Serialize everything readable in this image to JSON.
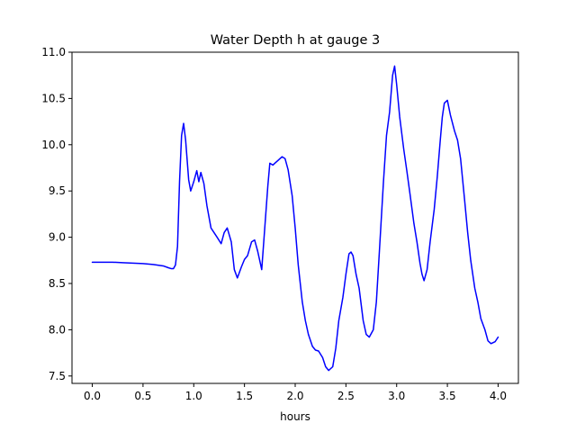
{
  "chart_data": {
    "type": "line",
    "title": "Water Depth h at gauge 3",
    "xlabel": "hours",
    "ylabel": "",
    "xlim": [
      -0.2,
      4.2
    ],
    "ylim": [
      7.42,
      11.0
    ],
    "xticks": [
      0.0,
      0.5,
      1.0,
      1.5,
      2.0,
      2.5,
      3.0,
      3.5,
      4.0
    ],
    "xtick_labels": [
      "0.0",
      "0.5",
      "1.0",
      "1.5",
      "2.0",
      "2.5",
      "3.0",
      "3.5",
      "4.0"
    ],
    "yticks": [
      7.5,
      8.0,
      8.5,
      9.0,
      9.5,
      10.0,
      10.5,
      11.0
    ],
    "ytick_labels": [
      "7.5",
      "8.0",
      "8.5",
      "9.0",
      "9.5",
      "10.0",
      "10.5",
      "11.0"
    ],
    "grid": false,
    "series": [
      {
        "color": "#0000ff",
        "x": [
          0.0,
          0.1,
          0.2,
          0.3,
          0.4,
          0.5,
          0.6,
          0.7,
          0.75,
          0.78,
          0.8,
          0.82,
          0.84,
          0.86,
          0.88,
          0.9,
          0.92,
          0.95,
          0.97,
          1.0,
          1.03,
          1.05,
          1.07,
          1.1,
          1.13,
          1.17,
          1.2,
          1.23,
          1.27,
          1.3,
          1.33,
          1.37,
          1.4,
          1.43,
          1.47,
          1.5,
          1.53,
          1.57,
          1.6,
          1.63,
          1.67,
          1.7,
          1.73,
          1.75,
          1.78,
          1.8,
          1.83,
          1.87,
          1.9,
          1.93,
          1.97,
          2.0,
          2.03,
          2.07,
          2.1,
          2.13,
          2.17,
          2.2,
          2.23,
          2.27,
          2.3,
          2.33,
          2.37,
          2.4,
          2.43,
          2.47,
          2.5,
          2.53,
          2.55,
          2.57,
          2.6,
          2.63,
          2.67,
          2.7,
          2.73,
          2.77,
          2.8,
          2.83,
          2.87,
          2.9,
          2.93,
          2.96,
          2.98,
          3.0,
          3.03,
          3.07,
          3.1,
          3.13,
          3.17,
          3.2,
          3.23,
          3.25,
          3.27,
          3.3,
          3.33,
          3.37,
          3.4,
          3.43,
          3.45,
          3.47,
          3.5,
          3.53,
          3.57,
          3.6,
          3.63,
          3.67,
          3.7,
          3.73,
          3.77,
          3.8,
          3.83,
          3.87,
          3.9,
          3.93,
          3.97,
          4.0
        ],
        "values": [
          8.73,
          8.73,
          8.73,
          8.725,
          8.72,
          8.715,
          8.705,
          8.69,
          8.67,
          8.66,
          8.66,
          8.7,
          8.9,
          9.6,
          10.1,
          10.23,
          10.05,
          9.62,
          9.5,
          9.6,
          9.72,
          9.6,
          9.7,
          9.58,
          9.34,
          9.1,
          9.05,
          9.0,
          8.93,
          9.05,
          9.1,
          8.95,
          8.65,
          8.56,
          8.68,
          8.76,
          8.8,
          8.95,
          8.97,
          8.85,
          8.65,
          9.1,
          9.55,
          9.8,
          9.78,
          9.8,
          9.83,
          9.87,
          9.85,
          9.73,
          9.45,
          9.1,
          8.7,
          8.3,
          8.1,
          7.95,
          7.82,
          7.78,
          7.77,
          7.7,
          7.6,
          7.56,
          7.6,
          7.8,
          8.1,
          8.35,
          8.6,
          8.82,
          8.84,
          8.8,
          8.6,
          8.45,
          8.1,
          7.95,
          7.92,
          8.0,
          8.3,
          8.85,
          9.6,
          10.1,
          10.35,
          10.75,
          10.85,
          10.65,
          10.3,
          9.95,
          9.72,
          9.48,
          9.15,
          8.95,
          8.72,
          8.6,
          8.53,
          8.65,
          8.95,
          9.3,
          9.65,
          10.05,
          10.3,
          10.45,
          10.48,
          10.32,
          10.15,
          10.05,
          9.85,
          9.4,
          9.05,
          8.75,
          8.45,
          8.3,
          8.12,
          8.0,
          7.88,
          7.85,
          7.87,
          7.92
        ]
      }
    ]
  }
}
